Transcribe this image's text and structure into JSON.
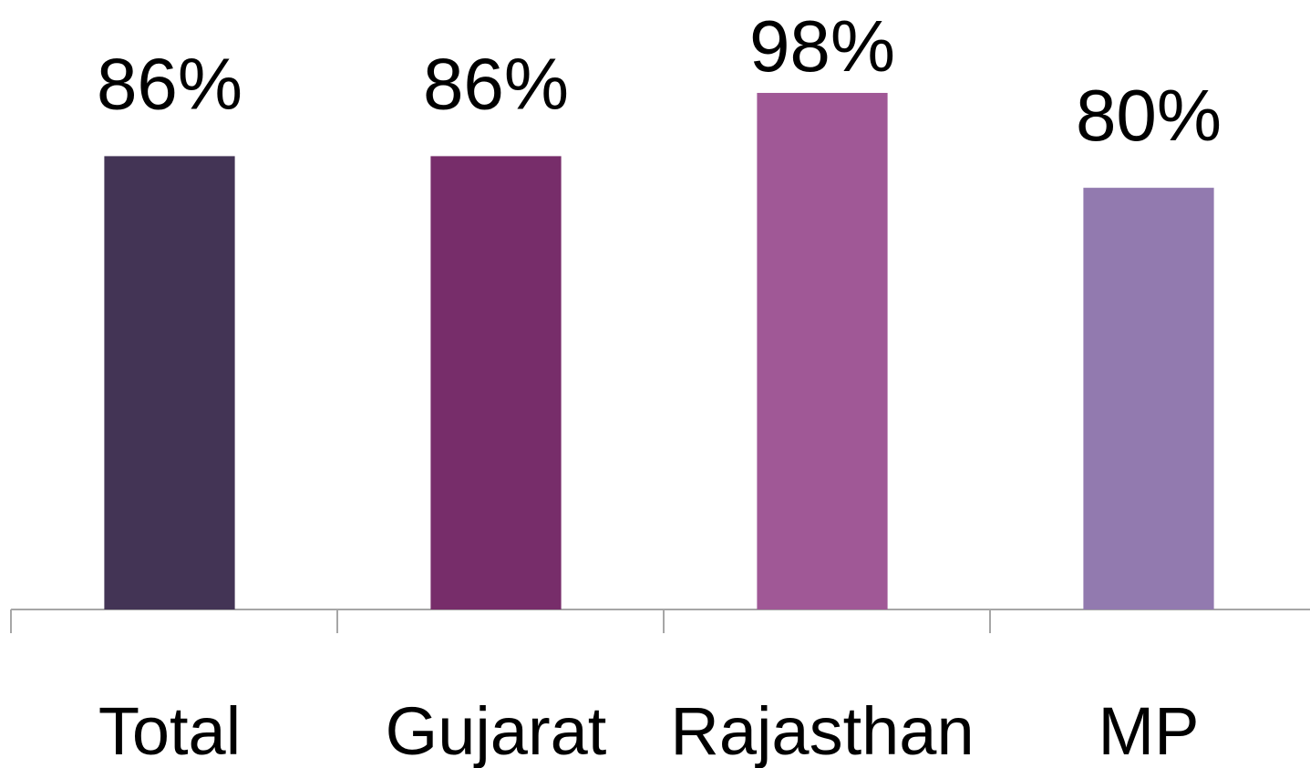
{
  "chart_data": {
    "type": "bar",
    "categories": [
      "Total",
      "Gujarat",
      "Rajasthan",
      "MP"
    ],
    "values": [
      86,
      86,
      98,
      80
    ],
    "value_labels": [
      "86%",
      "86%",
      "98%",
      "80%"
    ],
    "colors": [
      "#433455",
      "#772d6a",
      "#a05896",
      "#927aaf"
    ],
    "ylim": [
      0,
      100
    ]
  }
}
